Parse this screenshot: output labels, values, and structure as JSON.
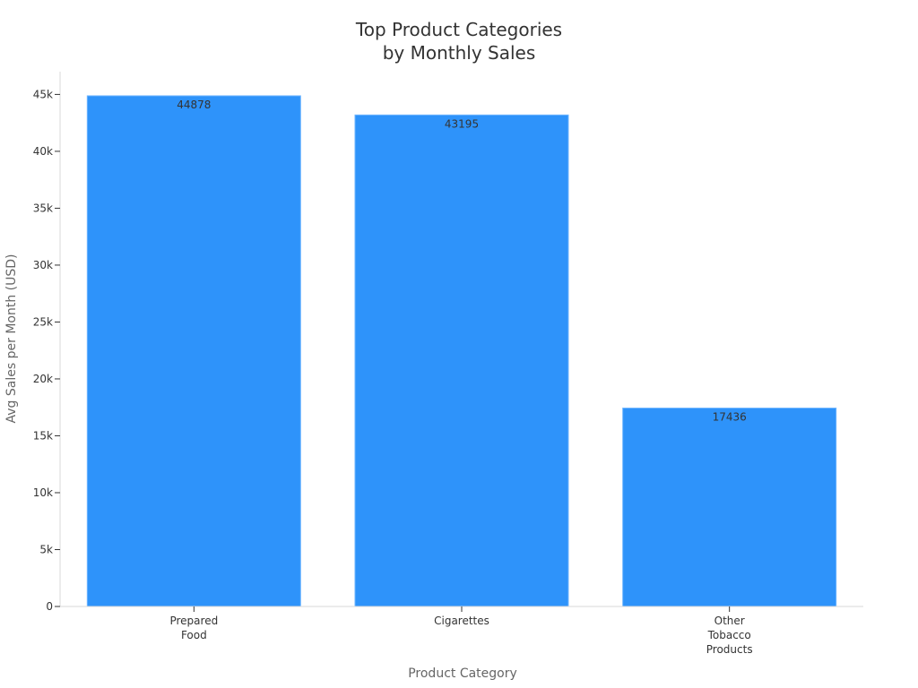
{
  "chart_data": {
    "type": "bar",
    "title_lines": [
      "Top Product Categories",
      "by Monthly Sales"
    ],
    "xlabel": "Product Category",
    "ylabel": "Avg Sales per Month (USD)",
    "categories": [
      [
        "Prepared",
        "Food"
      ],
      [
        "Cigarettes"
      ],
      [
        "Other",
        "Tobacco",
        "Products"
      ]
    ],
    "values": [
      44878,
      43195,
      17436
    ],
    "data_labels": [
      "44878",
      "43195",
      "17436"
    ],
    "ylim": [
      0,
      47000
    ],
    "y_ticks": [
      0,
      5000,
      10000,
      15000,
      20000,
      25000,
      30000,
      35000,
      40000,
      45000
    ],
    "y_tick_labels": [
      "0",
      "5k",
      "10k",
      "15k",
      "20k",
      "25k",
      "30k",
      "35k",
      "40k",
      "45k"
    ],
    "bar_color": "#2e93fa",
    "grid": false,
    "legend": "none"
  }
}
